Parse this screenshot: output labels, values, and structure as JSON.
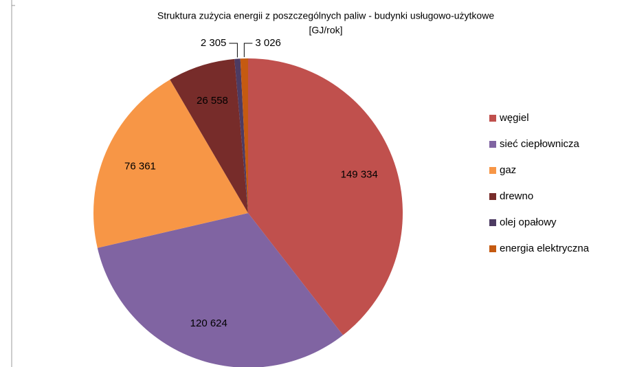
{
  "chart_data": {
    "type": "pie",
    "title": "Struktura zużycia energii z poszczególnych paliw - budynki usługowo-użytkowe",
    "subtitle": "[GJ/rok]",
    "categories": [
      "węgiel",
      "sieć ciepłownicza",
      "gaz",
      "drewno",
      "olej opałowy",
      "energia elektryczna"
    ],
    "values": [
      149334,
      120624,
      76361,
      26558,
      2305,
      3026
    ],
    "value_labels": [
      "149 334",
      "120 624",
      "76 361",
      "26 558",
      "2 305",
      "3 026"
    ],
    "colors": [
      "#c0504d",
      "#8064a2",
      "#f79646",
      "#772c2a",
      "#4d3b62",
      "#c55a11"
    ],
    "legend": "right"
  }
}
